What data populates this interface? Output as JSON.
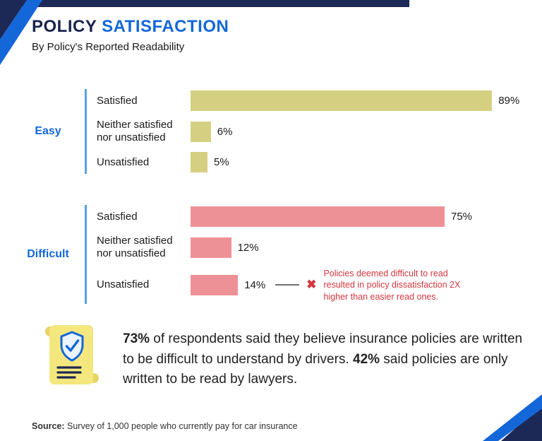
{
  "header": {
    "title_primary": "POLICY",
    "title_secondary": "SATISFACTION",
    "subtitle": "By Policy's Reported Readability"
  },
  "chart_data": {
    "type": "bar",
    "orientation": "horizontal",
    "value_unit": "%",
    "axis_range": [
      0,
      100
    ],
    "grid": false,
    "groups": [
      {
        "label": "Easy",
        "bar_color": "#d5cf82",
        "rows": [
          {
            "label": "Satisfied",
            "value": 89,
            "display": "89%"
          },
          {
            "label": "Neither satisfied nor unsatisfied",
            "value": 6,
            "display": "6%"
          },
          {
            "label": "Unsatisfied",
            "value": 5,
            "display": "5%"
          }
        ]
      },
      {
        "label": "Difficult",
        "bar_color": "#ee9196",
        "rows": [
          {
            "label": "Satisfied",
            "value": 75,
            "display": "75%"
          },
          {
            "label": "Neither satisfied nor unsatisfied",
            "value": 12,
            "display": "12%"
          },
          {
            "label": "Unsatisfied",
            "value": 14,
            "display": "14%"
          }
        ]
      }
    ],
    "annotation": {
      "marker": "✖",
      "color": "#d4373f",
      "text": "Policies deemed difficult to read resulted in policy dissatisfaction 2X higher than easier read ones.",
      "attached_to": "Difficult / Unsatisfied 14%"
    }
  },
  "summary": {
    "icon": "scroll-shield-icon",
    "segments": [
      {
        "text": "73%"
      },
      {
        "text": " of respondents said they believe insurance policies are written to be difficult to understand by drivers. "
      },
      {
        "text": "42%"
      },
      {
        "text": " said policies are only written to be read by lawyers."
      }
    ]
  },
  "footer": {
    "source_label": "Source:",
    "source_text": " Survey of 1,000 people who currently pay for car insurance"
  },
  "theme": {
    "navy": "#1c2956",
    "blue": "#1467d8",
    "easy_bar": "#d5cf82",
    "difficult_bar": "#ee9196",
    "annotation_red": "#d4373f",
    "icon_yellow": "#f4e77d"
  }
}
